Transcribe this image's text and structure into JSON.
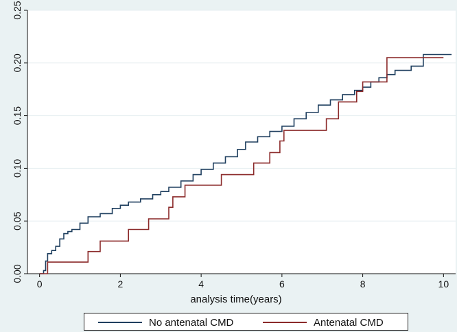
{
  "chart_data": {
    "type": "line",
    "title": "",
    "xlabel": "analysis time(years)",
    "ylabel": "",
    "xlim": [
      -0.3,
      10.3
    ],
    "ylim": [
      0,
      0.25
    ],
    "x_ticks": [
      0,
      2,
      4,
      6,
      8,
      10
    ],
    "x_tick_labels": [
      "0",
      "2",
      "4",
      "6",
      "8",
      "10"
    ],
    "y_ticks": [
      0,
      0.05,
      0.1,
      0.15,
      0.2,
      0.25
    ],
    "y_tick_labels": [
      "0.00",
      "0.05",
      "0.10",
      "0.15",
      "0.20",
      "0.25"
    ],
    "grid": "horizontal",
    "legend_position": "bottom",
    "series": [
      {
        "name": "No antenatal CMD",
        "color": "#1f3f5f",
        "step": true,
        "x": [
          0,
          0.1,
          0.15,
          0.2,
          0.3,
          0.4,
          0.5,
          0.6,
          0.7,
          0.8,
          1.0,
          1.2,
          1.5,
          1.8,
          2.0,
          2.2,
          2.5,
          2.8,
          3.0,
          3.2,
          3.5,
          3.8,
          4.0,
          4.3,
          4.6,
          4.9,
          5.1,
          5.4,
          5.7,
          6.0,
          6.3,
          6.6,
          6.9,
          7.2,
          7.5,
          7.8,
          8.0,
          8.2,
          8.4,
          8.6,
          8.8,
          9.2,
          9.5,
          10.2
        ],
        "y": [
          0,
          0.003,
          0.012,
          0.019,
          0.022,
          0.026,
          0.033,
          0.038,
          0.04,
          0.042,
          0.048,
          0.054,
          0.057,
          0.062,
          0.065,
          0.068,
          0.071,
          0.075,
          0.078,
          0.082,
          0.088,
          0.094,
          0.099,
          0.105,
          0.111,
          0.118,
          0.125,
          0.13,
          0.135,
          0.14,
          0.147,
          0.153,
          0.16,
          0.165,
          0.17,
          0.174,
          0.177,
          0.182,
          0.186,
          0.189,
          0.193,
          0.197,
          0.208,
          0.208
        ]
      },
      {
        "name": "Antenatal CMD",
        "color": "#8b2a2a",
        "step": true,
        "x": [
          0,
          0.2,
          1.2,
          1.5,
          2.2,
          2.7,
          3.2,
          3.3,
          3.6,
          4.5,
          5.3,
          5.7,
          5.95,
          6.05,
          7.1,
          7.4,
          7.85,
          8.0,
          8.6,
          10.0
        ],
        "y": [
          0,
          0.011,
          0.021,
          0.031,
          0.042,
          0.052,
          0.063,
          0.073,
          0.084,
          0.094,
          0.105,
          0.115,
          0.126,
          0.136,
          0.147,
          0.163,
          0.173,
          0.182,
          0.205,
          0.205
        ]
      }
    ]
  }
}
